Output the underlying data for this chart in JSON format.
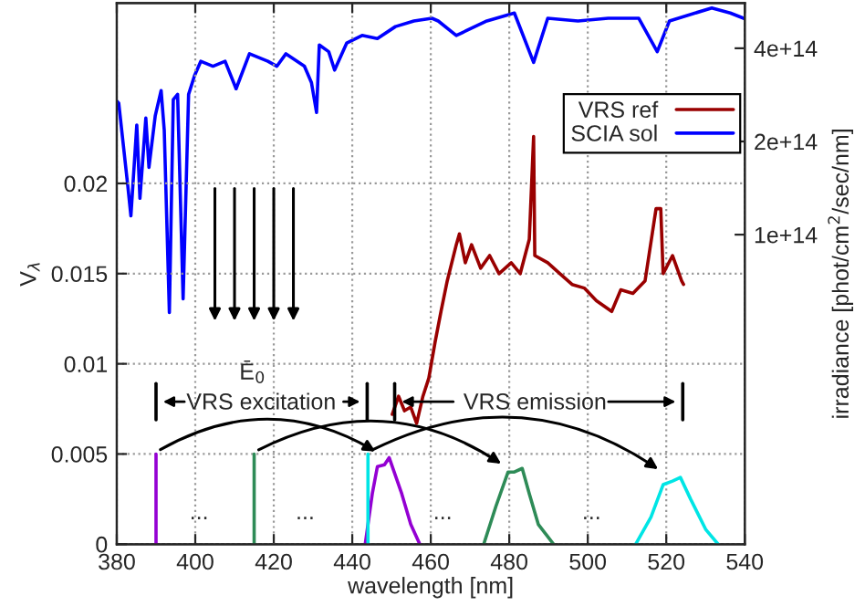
{
  "chart_data": {
    "type": "line",
    "xlabel": "wavelength [nm]",
    "ylabel": "V$_{λ}$",
    "y2label": "irradiance [phot/cm$^{2}$/sec/nm]",
    "xlim": [
      380,
      540
    ],
    "xticks": [
      380,
      400,
      420,
      440,
      460,
      480,
      500,
      520,
      540
    ],
    "ylim": [
      0,
      0.03
    ],
    "yticks": [
      0,
      0.005,
      0.01,
      0.015,
      0.02
    ],
    "y2lim": [
      10000000000000.0,
      560000000000000.0
    ],
    "y2ticks": [
      {
        "value": 100000000000000.0,
        "label": "1e+14"
      },
      {
        "value": 200000000000000.0,
        "label": "2e+14"
      },
      {
        "value": 400000000000000.0,
        "label": "4e+14"
      }
    ],
    "log": "y2",
    "grid": true,
    "legend": "top right",
    "series": [
      {
        "name": "VRS ref",
        "color": "#990000",
        "x": [
          450.2,
          451.8,
          453.3,
          454.9,
          456.4,
          458,
          459.5,
          461.1,
          462.6,
          464.2,
          466.5,
          467.3,
          468.8,
          470.4,
          472.7,
          475,
          477.4,
          480.5,
          482.8,
          485.1,
          486.2,
          486.5,
          489.8,
          492.9,
          496,
          499.1,
          502.2,
          506.1,
          508.4,
          511.5,
          514.6,
          517.4,
          518.6,
          519.2,
          521.6,
          523.9,
          524.4
        ],
        "values": [
          0.0072,
          0.0082,
          0.0074,
          0.0076,
          0.0067,
          0.0082,
          0.0092,
          0.0112,
          0.0129,
          0.0146,
          0.0166,
          0.0172,
          0.0156,
          0.0166,
          0.0153,
          0.016,
          0.015,
          0.0156,
          0.015,
          0.0169,
          0.0226,
          0.016,
          0.0156,
          0.015,
          0.0144,
          0.0142,
          0.0135,
          0.0129,
          0.0141,
          0.0139,
          0.0146,
          0.0186,
          0.0186,
          0.015,
          0.016,
          0.0146,
          0.0144
        ]
      },
      {
        "name": "SCIA sol",
        "color": "#0000ff",
        "axis": "y2",
        "x": [
          380,
          380.5,
          382.8,
          383.6,
          385.1,
          385.9,
          387.4,
          388.2,
          389.8,
          391.3,
          392.1,
          393.4,
          394.4,
          395.5,
          396.9,
          398.3,
          399.8,
          401.4,
          404.5,
          407.6,
          410.4,
          413.8,
          418.5,
          420.8,
          423.1,
          427.8,
          429.6,
          430.9,
          431.6,
          434,
          435.5,
          438.6,
          442.5,
          446.4,
          451,
          455.7,
          460.3,
          461.9,
          466.5,
          474.3,
          481.3,
          486.2,
          489.8,
          497.5,
          505.2,
          513,
          517.7,
          520.8,
          531.6,
          536.3,
          539.7
        ],
        "values": [
          270000000000000.0,
          266000000000000.0,
          144000000000000.0,
          115000000000000.0,
          226000000000000.0,
          131000000000000.0,
          238000000000000.0,
          165000000000000.0,
          242000000000000.0,
          292000000000000.0,
          217000000000000.0,
          56000000000000.0,
          273000000000000.0,
          284000000000000.0,
          62000000000000.0,
          284000000000000.0,
          326000000000000.0,
          363000000000000.0,
          350000000000000.0,
          363000000000000.0,
          296000000000000.0,
          384000000000000.0,
          363000000000000.0,
          350000000000000.0,
          384000000000000.0,
          350000000000000.0,
          310000000000000.0,
          248000000000000.0,
          410000000000000.0,
          390000000000000.0,
          340000000000000.0,
          416000000000000.0,
          440000000000000.0,
          430000000000000.0,
          470000000000000.0,
          490000000000000.0,
          500000000000000.0,
          490000000000000.0,
          440000000000000.0,
          490000000000000.0,
          520000000000000.0,
          360000000000000.0,
          500000000000000.0,
          490000000000000.0,
          500000000000000.0,
          500000000000000.0,
          390000000000000.0,
          490000000000000.0,
          540000000000000.0,
          520000000000000.0,
          500000000000000.0
        ]
      },
      {
        "color": "#9400d3",
        "x": [
          390,
          390,
          400,
          443.3,
          445.1,
          446.4,
          448.2,
          449.4,
          452.6,
          454.9,
          457.2
        ],
        "values": [
          0,
          0.005,
          null,
          0,
          0.0028,
          0.0043,
          0.0044,
          0.0048,
          0.0028,
          0.0011,
          0
        ]
      },
      {
        "color": "#2e8b57",
        "x": [
          415,
          415,
          440,
          473.5,
          476.6,
          479.7,
          481.3,
          483.3,
          485.1,
          487.4,
          491.3
        ],
        "values": [
          0,
          0.005,
          null,
          0,
          0.0021,
          0.004,
          0.004,
          0.0042,
          0.0028,
          0.0011,
          0
        ]
      },
      {
        "color": "#00e5e5",
        "x": [
          444,
          444,
          480,
          512.2,
          516.1,
          519.2,
          521.6,
          523.6,
          526.2,
          530.1,
          533.2
        ],
        "values": [
          0,
          0.005,
          null,
          0,
          0.0015,
          0.0033,
          0.0035,
          0.0037,
          0.0025,
          0.0008,
          0
        ]
      }
    ],
    "annotations": [
      "Ē$_{0}$",
      "VRS excitation",
      "VRS emission",
      "...",
      "...",
      "...",
      "..."
    ]
  }
}
